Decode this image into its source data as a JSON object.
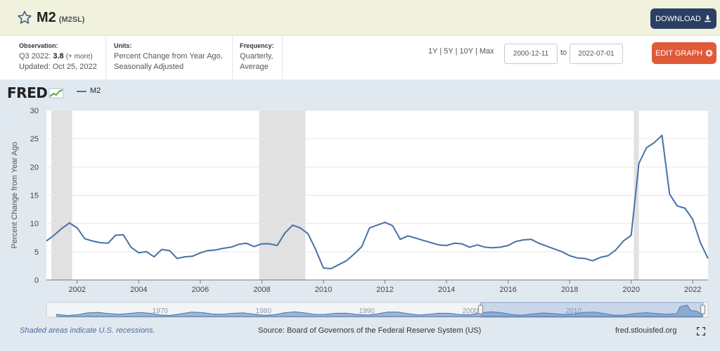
{
  "header": {
    "title": "M2",
    "series_id": "(M2SL)",
    "download_label": "DOWNLOAD",
    "edit_label": "EDIT GRAPH"
  },
  "meta": {
    "observation_label": "Observation:",
    "observation_period": "Q3 2022:",
    "observation_value": "3.8",
    "observation_more": "(+ more)",
    "updated": "Updated: Oct 25, 2022",
    "units_label": "Units:",
    "units_line1": "Percent Change from Year Ago,",
    "units_line2": "Seasonally Adjusted",
    "frequency_label": "Frequency:",
    "frequency_line1": "Quarterly,",
    "frequency_line2": "Average"
  },
  "range": {
    "buttons": [
      "1Y",
      "5Y",
      "10Y",
      "Max"
    ],
    "separator": "|",
    "start": "2000-12-11",
    "to_label": "to",
    "end": "2022-07-01"
  },
  "footer": {
    "recession_note": "Shaded areas indicate U.S. recessions.",
    "source": "Source: Board of Governors of the Federal Reserve System (US)",
    "site": "fred.stlouisfed.org"
  },
  "logo": {
    "text": "FRED"
  },
  "colors": {
    "series": "#4572a7",
    "recession": "#e1e1e1",
    "plot_bg": "#ffffff",
    "outer_bg": "#e1e9f0",
    "download": "#2a3f63",
    "edit": "#e05a3a"
  },
  "chart_data": {
    "type": "line",
    "ylabel": "Percent Change from Year Ago",
    "ylim": [
      0,
      30
    ],
    "yticks": [
      0,
      5,
      10,
      15,
      20,
      25,
      30
    ],
    "xlim": [
      "2001-01-01",
      "2022-07-01"
    ],
    "xticks": [
      "2002",
      "2004",
      "2006",
      "2008",
      "2010",
      "2012",
      "2014",
      "2016",
      "2018",
      "2020",
      "2022"
    ],
    "grid": true,
    "legend": "top-left",
    "recessions": [
      [
        "2001-03-01",
        "2001-11-01"
      ],
      [
        "2007-12-01",
        "2009-06-01"
      ],
      [
        "2020-02-01",
        "2020-04-01"
      ]
    ],
    "series": [
      {
        "name": "M2",
        "x": [
          "2001-01-01",
          "2001-04-01",
          "2001-07-01",
          "2001-10-01",
          "2002-01-01",
          "2002-04-01",
          "2002-07-01",
          "2002-10-01",
          "2003-01-01",
          "2003-04-01",
          "2003-07-01",
          "2003-10-01",
          "2004-01-01",
          "2004-04-01",
          "2004-07-01",
          "2004-10-01",
          "2005-01-01",
          "2005-04-01",
          "2005-07-01",
          "2005-10-01",
          "2006-01-01",
          "2006-04-01",
          "2006-07-01",
          "2006-10-01",
          "2007-01-01",
          "2007-04-01",
          "2007-07-01",
          "2007-10-01",
          "2008-01-01",
          "2008-04-01",
          "2008-07-01",
          "2008-10-01",
          "2009-01-01",
          "2009-04-01",
          "2009-07-01",
          "2009-10-01",
          "2010-01-01",
          "2010-04-01",
          "2010-07-01",
          "2010-10-01",
          "2011-01-01",
          "2011-04-01",
          "2011-07-01",
          "2011-10-01",
          "2012-01-01",
          "2012-04-01",
          "2012-07-01",
          "2012-10-01",
          "2013-01-01",
          "2013-04-01",
          "2013-07-01",
          "2013-10-01",
          "2014-01-01",
          "2014-04-01",
          "2014-07-01",
          "2014-10-01",
          "2015-01-01",
          "2015-04-01",
          "2015-07-01",
          "2015-10-01",
          "2016-01-01",
          "2016-04-01",
          "2016-07-01",
          "2016-10-01",
          "2017-01-01",
          "2017-04-01",
          "2017-07-01",
          "2017-10-01",
          "2018-01-01",
          "2018-04-01",
          "2018-07-01",
          "2018-10-01",
          "2019-01-01",
          "2019-04-01",
          "2019-07-01",
          "2019-10-01",
          "2020-01-01",
          "2020-04-01",
          "2020-07-01",
          "2020-10-01",
          "2021-01-01",
          "2021-04-01",
          "2021-07-01",
          "2021-10-01",
          "2022-01-01",
          "2022-04-01",
          "2022-07-01"
        ],
        "y": [
          6.9,
          7.9,
          9.1,
          10.1,
          9.2,
          7.3,
          6.9,
          6.6,
          6.5,
          7.9,
          8.0,
          5.8,
          4.8,
          5.0,
          4.1,
          5.4,
          5.2,
          3.8,
          4.1,
          4.2,
          4.8,
          5.2,
          5.3,
          5.6,
          5.8,
          6.3,
          6.5,
          5.9,
          6.4,
          6.4,
          6.1,
          8.3,
          9.7,
          9.2,
          8.2,
          5.4,
          2.1,
          2.0,
          2.7,
          3.4,
          4.6,
          5.9,
          9.2,
          9.7,
          10.2,
          9.6,
          7.2,
          7.8,
          7.4,
          7.0,
          6.6,
          6.2,
          6.1,
          6.5,
          6.4,
          5.8,
          6.2,
          5.8,
          5.7,
          5.8,
          6.1,
          6.8,
          7.1,
          7.2,
          6.5,
          6.0,
          5.5,
          5.0,
          4.3,
          3.9,
          3.8,
          3.4,
          4.0,
          4.3,
          5.3,
          6.9,
          7.9,
          20.6,
          23.4,
          24.3,
          25.6,
          15.2,
          13.1,
          12.7,
          10.7,
          6.6,
          3.8
        ]
      }
    ]
  }
}
